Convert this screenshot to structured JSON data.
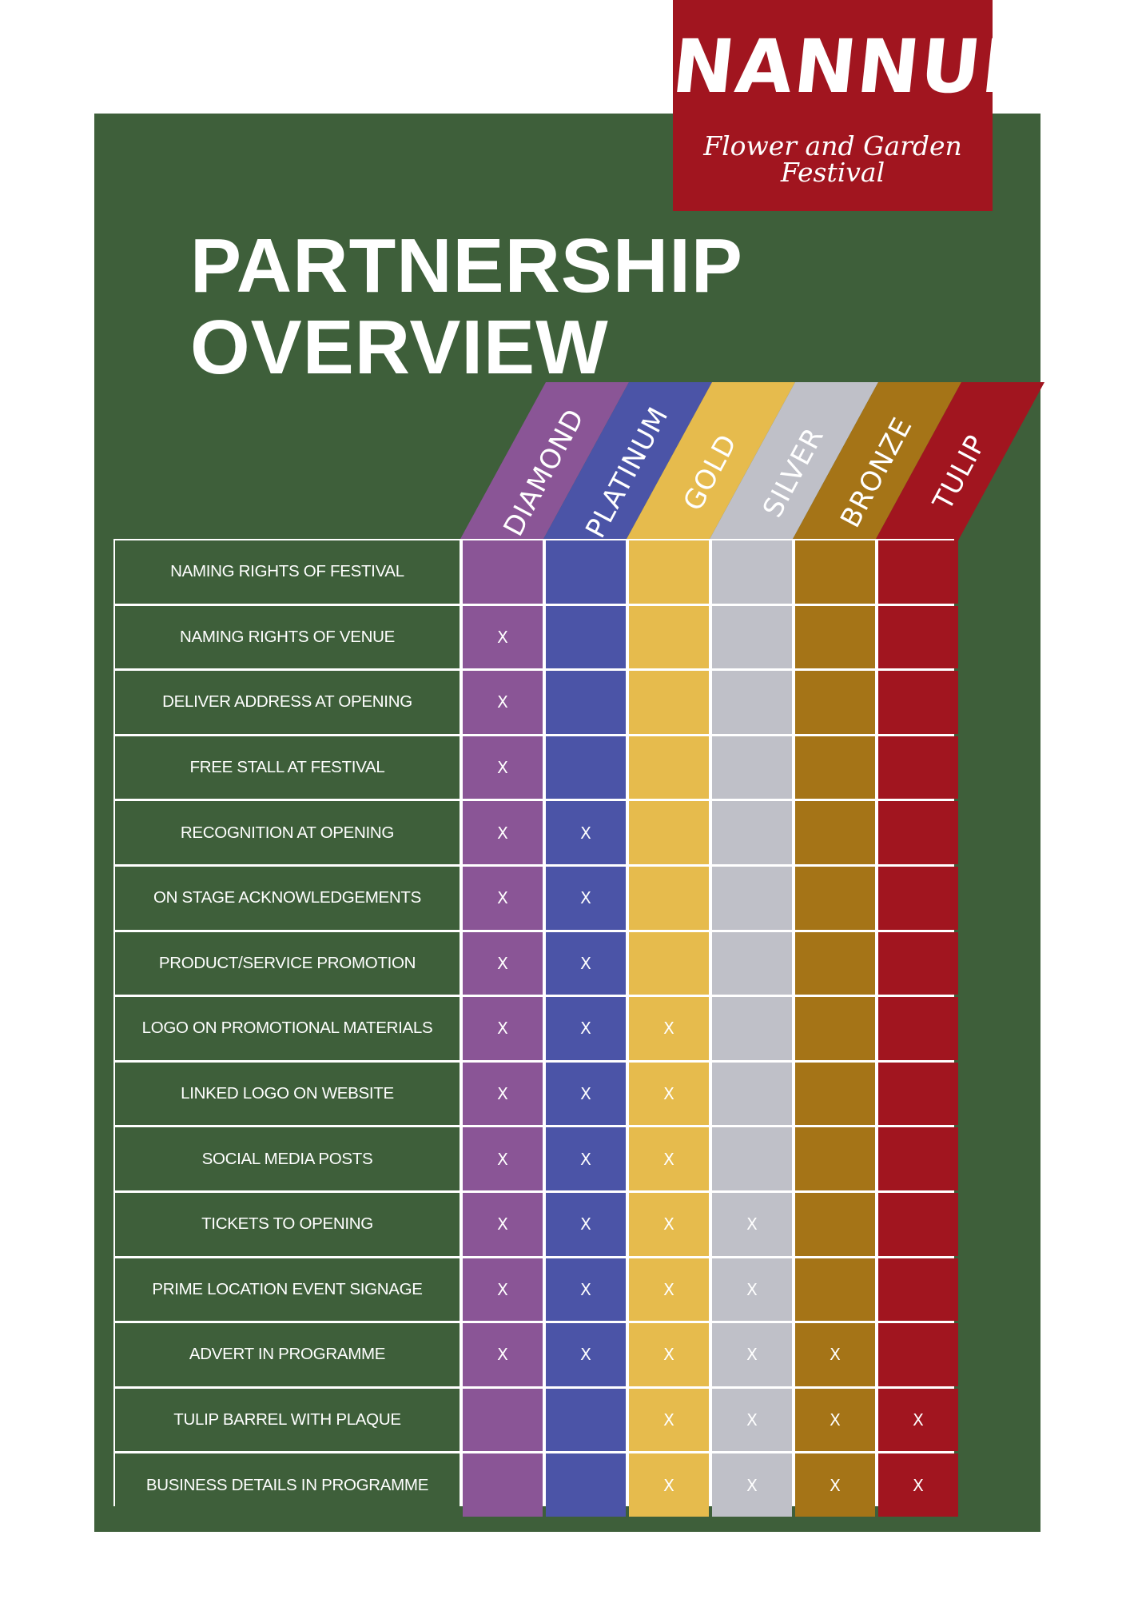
{
  "logo": {
    "name": "NANNUP",
    "tagline": "Flower and Garden Festival"
  },
  "title": {
    "line1": "PARTNERSHIP",
    "line2": "OVERVIEW"
  },
  "colors": {
    "background": "#3e5f3a",
    "logo_background": "#a1151f",
    "table_lines": "#ffffff"
  },
  "tiers": [
    {
      "label": "DIAMOND",
      "color": "#8a5596"
    },
    {
      "label": "PLATINUM",
      "color": "#4b54a7"
    },
    {
      "label": "GOLD",
      "color": "#e6bb4d"
    },
    {
      "label": "SILVER",
      "color": "#bfc0c8"
    },
    {
      "label": "BRONZE",
      "color": "#a57417"
    },
    {
      "label": "TULIP",
      "color": "#a1151f"
    }
  ],
  "mark_symbol": "X",
  "benefits": [
    {
      "label": "NAMING RIGHTS OF FESTIVAL",
      "tiers": [
        false,
        false,
        false,
        false,
        false,
        false
      ]
    },
    {
      "label": "NAMING RIGHTS OF VENUE",
      "tiers": [
        true,
        false,
        false,
        false,
        false,
        false
      ]
    },
    {
      "label": "DELIVER ADDRESS AT OPENING",
      "tiers": [
        true,
        false,
        false,
        false,
        false,
        false
      ]
    },
    {
      "label": "FREE STALL AT FESTIVAL",
      "tiers": [
        true,
        false,
        false,
        false,
        false,
        false
      ]
    },
    {
      "label": "RECOGNITION AT OPENING",
      "tiers": [
        true,
        true,
        false,
        false,
        false,
        false
      ]
    },
    {
      "label": "ON STAGE ACKNOWLEDGEMENTS",
      "tiers": [
        true,
        true,
        false,
        false,
        false,
        false
      ]
    },
    {
      "label": "PRODUCT/SERVICE PROMOTION",
      "tiers": [
        true,
        true,
        false,
        false,
        false,
        false
      ]
    },
    {
      "label": "LOGO ON PROMOTIONAL MATERIALS",
      "tiers": [
        true,
        true,
        true,
        false,
        false,
        false
      ]
    },
    {
      "label": "LINKED LOGO ON WEBSITE",
      "tiers": [
        true,
        true,
        true,
        false,
        false,
        false
      ]
    },
    {
      "label": "SOCIAL MEDIA POSTS",
      "tiers": [
        true,
        true,
        true,
        false,
        false,
        false
      ]
    },
    {
      "label": "TICKETS TO OPENING",
      "tiers": [
        true,
        true,
        true,
        true,
        false,
        false
      ]
    },
    {
      "label": "PRIME LOCATION EVENT SIGNAGE",
      "tiers": [
        true,
        true,
        true,
        true,
        false,
        false
      ]
    },
    {
      "label": "ADVERT IN PROGRAMME",
      "tiers": [
        true,
        true,
        true,
        true,
        true,
        false
      ]
    },
    {
      "label": "TULIP BARREL WITH PLAQUE",
      "tiers": [
        false,
        false,
        true,
        true,
        true,
        true
      ]
    },
    {
      "label": "BUSINESS DETAILS IN PROGRAMME",
      "tiers": [
        false,
        false,
        true,
        true,
        true,
        true
      ]
    }
  ]
}
